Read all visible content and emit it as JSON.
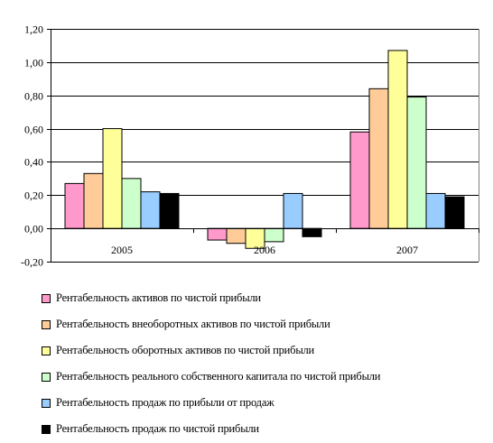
{
  "chart_data": {
    "type": "bar",
    "categories": [
      "2005",
      "2006",
      "2007"
    ],
    "ylim": [
      -0.2,
      1.2
    ],
    "y_ticks": [
      "-0,20",
      "0,00",
      "0,20",
      "0,40",
      "0,60",
      "0,80",
      "1,00",
      "1,20"
    ],
    "grid": true,
    "legend_position": "bottom",
    "series": [
      {
        "name": "Рентабельность активов по чистой прибыли",
        "color": "#ff99cc",
        "values": [
          0.27,
          -0.07,
          0.58
        ]
      },
      {
        "name": "Рентабельность внеоборотных активов по чистой прибыли",
        "color": "#ffcc99",
        "values": [
          0.33,
          -0.09,
          0.84
        ]
      },
      {
        "name": "Рентабельность оборотных активов по чистой прибыли",
        "color": "#ffff99",
        "values": [
          0.6,
          -0.12,
          1.07
        ]
      },
      {
        "name": "Рентабельность реального собственного капитала по чистой прибыли",
        "color": "#ccffcc",
        "values": [
          0.3,
          -0.08,
          0.79
        ]
      },
      {
        "name": "Рентабельность продаж по прибыли от продаж",
        "color": "#99ccff",
        "values": [
          0.22,
          0.21,
          0.21
        ]
      },
      {
        "name": "Рентабельность продаж по чистой прибыли",
        "color": "#000000",
        "values": [
          0.21,
          -0.05,
          0.19
        ]
      }
    ]
  }
}
